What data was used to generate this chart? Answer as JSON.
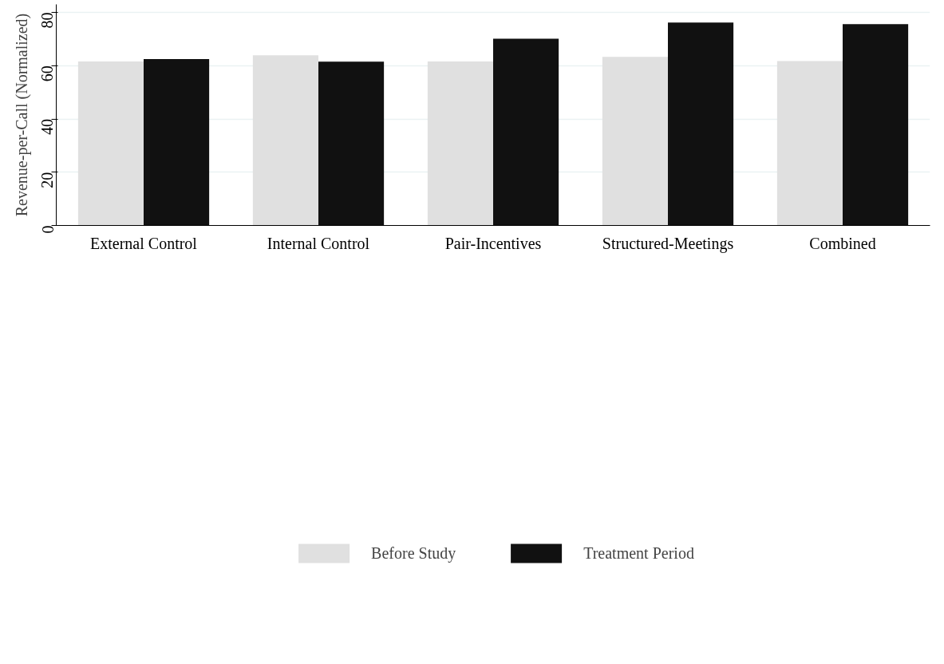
{
  "chart_data": {
    "type": "bar",
    "ylabel": "Revenue-per-Call (Normalized)",
    "categories": [
      "External Control",
      "Internal Control",
      "Pair-Incentives",
      "Structured-Meetings",
      "Combined"
    ],
    "series": [
      {
        "name": "Before Study",
        "color": "#e0e0e0",
        "values": [
          61.6,
          63.9,
          61.6,
          63.3,
          61.7
        ]
      },
      {
        "name": "Treatment Period",
        "color": "#111111",
        "values": [
          62.5,
          61.5,
          70.1,
          76.2,
          75.6
        ]
      }
    ],
    "ylim": [
      0,
      83
    ],
    "yticks": [
      0,
      20,
      40,
      60,
      80
    ],
    "grid": "y",
    "legend": "bottom"
  }
}
